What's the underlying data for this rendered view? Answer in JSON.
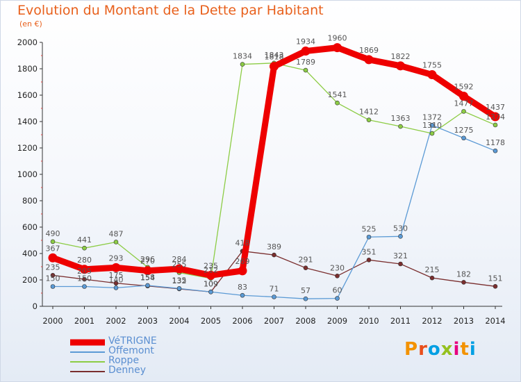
{
  "chart_data": {
    "type": "line",
    "title": "Evolution du Montant de la Dette par Habitant",
    "unit_label": "(en €)",
    "x": [
      "2000",
      "2001",
      "2002",
      "2003",
      "2004",
      "2005",
      "2006",
      "2007",
      "2008",
      "2009",
      "2010",
      "2011",
      "2012",
      "2013",
      "2014"
    ],
    "ylim": [
      0,
      2000
    ],
    "yticks": [
      "0",
      "200",
      "400",
      "600",
      "800",
      "1000",
      "1200",
      "1400",
      "1600",
      "1800",
      "2000"
    ],
    "grid": false,
    "legend_position": "bottom-left",
    "series": [
      {
        "name": "VéTRIGNE",
        "color": "#ee0000",
        "values": [
          367,
          280,
          293,
          270,
          284,
          235,
          269,
          1818,
          1934,
          1960,
          1869,
          1822,
          1755,
          1592,
          1437
        ],
        "labels": [
          "367",
          "280",
          "293",
          "270",
          "284",
          "235",
          "269",
          "1818",
          "1934",
          "1960",
          "1869",
          "1822",
          "1755",
          "1592",
          "1437"
        ]
      },
      {
        "name": "Offemont",
        "color": "#5b9ad5",
        "values": [
          150,
          150,
          140,
          158,
          135,
          109,
          83,
          71,
          57,
          60,
          525,
          530,
          1372,
          1275,
          1178
        ],
        "labels": [
          "150",
          "150",
          "140",
          "158",
          "135",
          "109",
          "83",
          "71",
          "57",
          "60",
          "525",
          "530",
          "1372",
          "1275",
          "1178"
        ]
      },
      {
        "name": "Roppe",
        "color": "#8ccc44",
        "values": [
          490,
          441,
          487,
          296,
          255,
          212,
          1834,
          1843,
          1789,
          1541,
          1412,
          1363,
          1310,
          1477,
          1374
        ],
        "labels": [
          "490",
          "441",
          "487",
          "296",
          "255",
          "212",
          "1834",
          "1843",
          "1789",
          "1541",
          "1412",
          "1363",
          "1310",
          "1477",
          "1374"
        ]
      },
      {
        "name": "Denney",
        "color": "#7a2e2e",
        "values": [
          235,
          205,
          175,
          154,
          132,
          109,
          418,
          389,
          291,
          230,
          351,
          321,
          215,
          182,
          151
        ],
        "labels": [
          "235",
          "205",
          "175",
          "154",
          "132",
          "109",
          "418",
          "389",
          "291",
          "230",
          "351",
          "321",
          "215",
          "182",
          "151"
        ]
      }
    ]
  },
  "brand": {
    "name": "Proxiti",
    "letters": [
      "P",
      "r",
      "o",
      "x",
      "i",
      "t",
      "i"
    ],
    "colors": [
      "#f39200",
      "#e94e1b",
      "#009fe3",
      "#95c11f",
      "#e6007e",
      "#f39200",
      "#009fe3"
    ]
  }
}
